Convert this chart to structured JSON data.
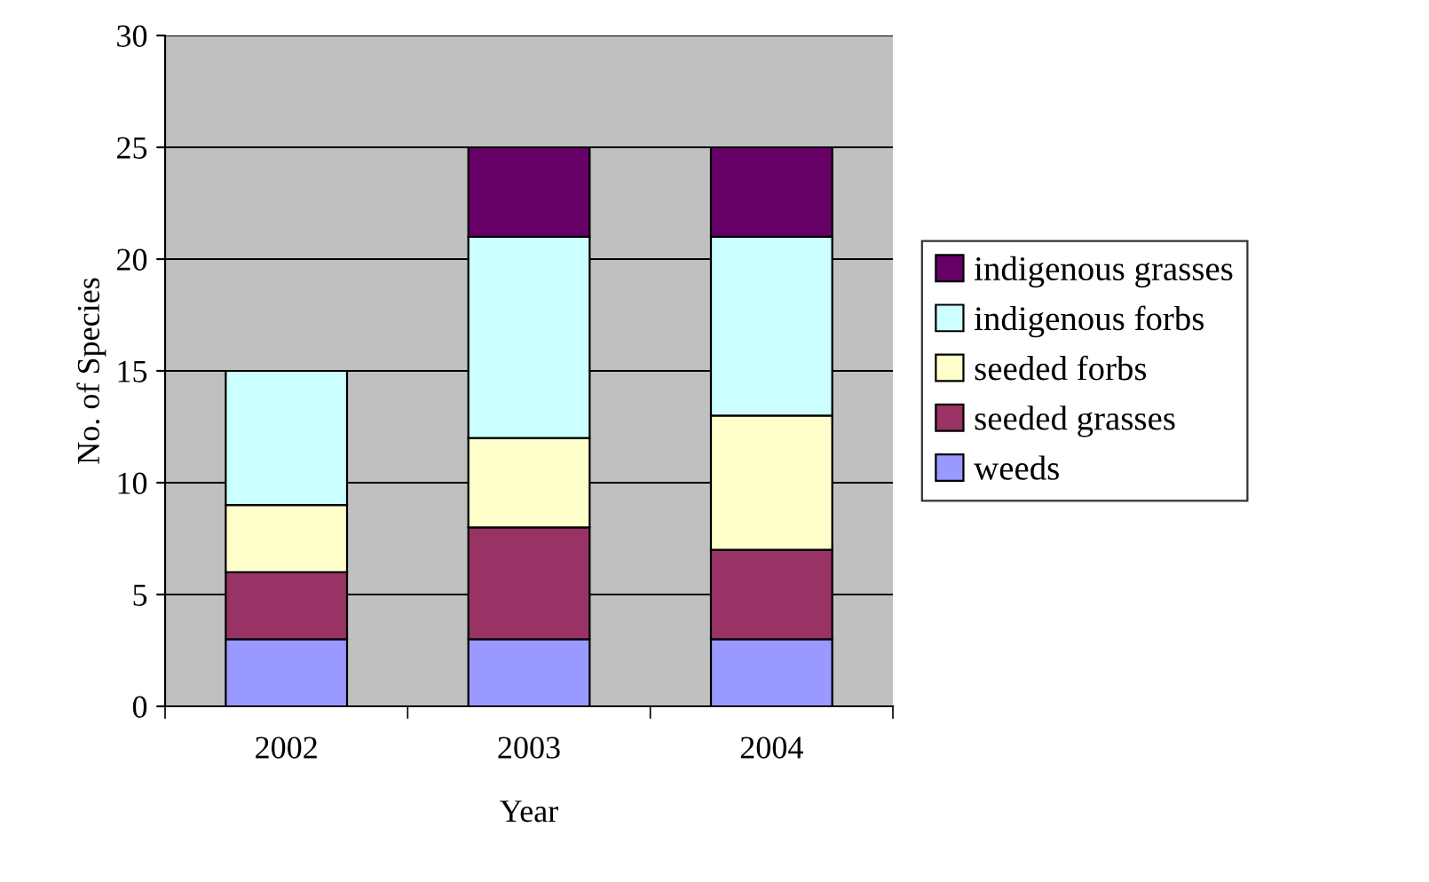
{
  "chart_data": {
    "type": "bar",
    "stacked": true,
    "xlabel": "Year",
    "ylabel": "No. of Species",
    "categories": [
      "2002",
      "2003",
      "2004"
    ],
    "series": [
      {
        "name": "weeds",
        "color": "#9999ff",
        "values": [
          3,
          3,
          3
        ]
      },
      {
        "name": "seeded grasses",
        "color": "#993366",
        "values": [
          3,
          5,
          4
        ]
      },
      {
        "name": "seeded forbs",
        "color": "#ffffcc",
        "values": [
          3,
          4,
          6
        ]
      },
      {
        "name": "indigenous forbs",
        "color": "#ccffff",
        "values": [
          6,
          9,
          8
        ]
      },
      {
        "name": "indigenous grasses",
        "color": "#660066",
        "values": [
          null,
          4,
          4
        ]
      }
    ],
    "ylim": [
      0,
      30
    ],
    "yticks": [
      0,
      5,
      10,
      15,
      20,
      25,
      30
    ],
    "grid": "y",
    "legend": "right"
  }
}
